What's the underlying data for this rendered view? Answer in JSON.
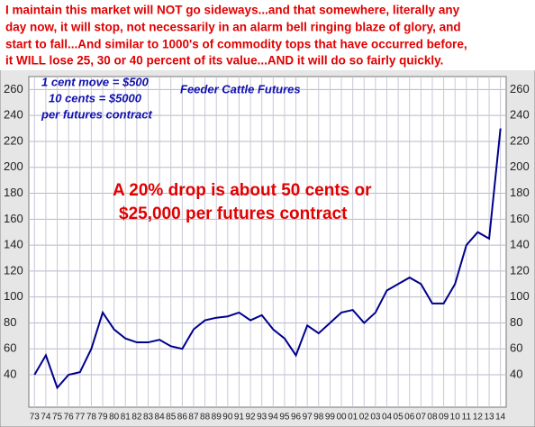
{
  "chart_data": {
    "type": "line",
    "title": "Feeder Cattle Futures",
    "headline_lines": [
      "I maintain this market will NOT go sideways...and that somewhere, literally any",
      "day now, it will stop, not necessarily in an alarm bell ringing blaze of glory, and",
      "start to fall...And similar to 1000's of commodity tops that have occurred before,",
      "it WILL lose 25, 30 or 40 percent of its value...AND it will do so fairly quickly."
    ],
    "annotations": [
      "1 cent move = $500",
      "10 cents = $5000",
      "per futures contract",
      "A 20% drop is about 50 cents or",
      "$25,000 per futures contract"
    ],
    "categories": [
      "73",
      "74",
      "75",
      "76",
      "77",
      "78",
      "79",
      "80",
      "81",
      "82",
      "83",
      "84",
      "85",
      "86",
      "87",
      "88",
      "89",
      "90",
      "91",
      "92",
      "93",
      "94",
      "95",
      "96",
      "97",
      "98",
      "99",
      "00",
      "01",
      "02",
      "03",
      "04",
      "05",
      "06",
      "07",
      "08",
      "09",
      "10",
      "11",
      "12",
      "13",
      "14"
    ],
    "series": [
      {
        "name": "Feeder Cattle Futures",
        "color": "#00008b",
        "values": [
          40,
          55,
          30,
          40,
          42,
          60,
          88,
          75,
          68,
          65,
          65,
          67,
          62,
          60,
          75,
          82,
          84,
          85,
          88,
          82,
          86,
          75,
          68,
          55,
          78,
          72,
          80,
          88,
          90,
          80,
          88,
          105,
          110,
          115,
          110,
          95,
          95,
          110,
          140,
          150,
          145,
          230
        ]
      }
    ],
    "ylim": [
      15,
      270
    ],
    "yticks": [
      40,
      60,
      80,
      100,
      120,
      140,
      160,
      180,
      200,
      220,
      240,
      260
    ],
    "grid": true
  }
}
